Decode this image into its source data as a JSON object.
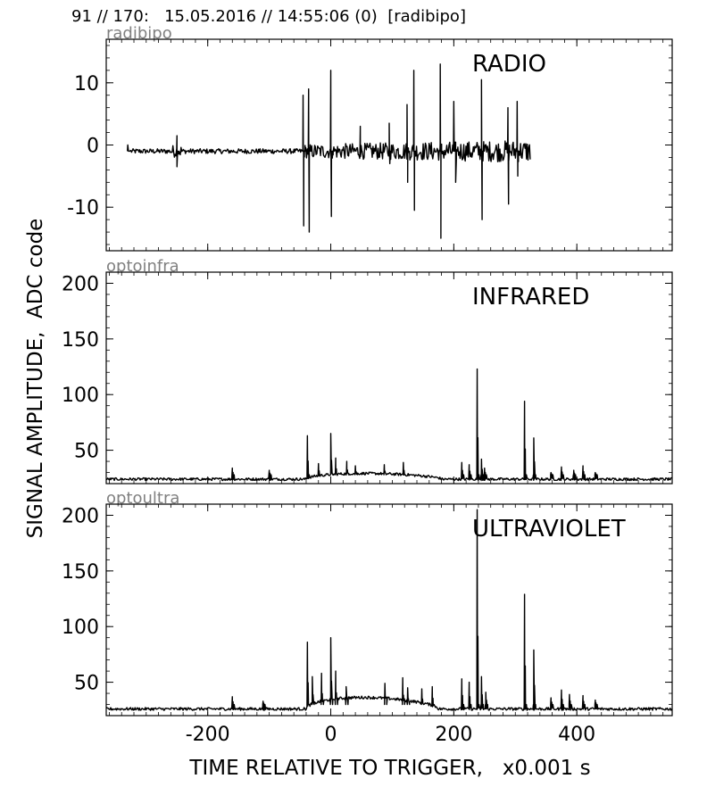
{
  "header": "91 // 170:   15.05.2016 // 14:55:06 (0)  [radibipo]",
  "y_axis_label": "SIGNAL AMPLITUDE,  ADC code",
  "x_axis_label": "TIME RELATIVE TO TRIGGER,   x0.001 s",
  "chart_data": [
    {
      "type": "line",
      "channel": "radibipo",
      "title": "RADIO",
      "xlim": [
        -365,
        555
      ],
      "ylim": [
        -17,
        17
      ],
      "yticks": [
        10,
        0,
        -10
      ],
      "ytick_labels": [
        "10",
        "0",
        "-10"
      ],
      "xticks": [
        -200,
        0,
        200,
        400
      ],
      "xtick_labels": [
        "-200",
        "0",
        "200",
        "400"
      ],
      "show_xtick_labels": false,
      "grid": false,
      "line_color": "#000000",
      "x_range": [
        -325,
        325
      ],
      "baseline": -1,
      "noise": 0.4,
      "spikes": [
        {
          "x": -330,
          "y": 0
        },
        {
          "x": -250,
          "y": 1.5
        },
        {
          "x": -250,
          "y": -3.5
        },
        {
          "x": -45,
          "y": 8
        },
        {
          "x": -44,
          "y": -13
        },
        {
          "x": -36,
          "y": 9
        },
        {
          "x": -35,
          "y": -14
        },
        {
          "x": 0,
          "y": 12
        },
        {
          "x": 1,
          "y": -11.5
        },
        {
          "x": 48,
          "y": 3
        },
        {
          "x": 95,
          "y": 3.5
        },
        {
          "x": 96,
          "y": -3
        },
        {
          "x": 124,
          "y": 6.5
        },
        {
          "x": 125,
          "y": -6
        },
        {
          "x": 135,
          "y": 12
        },
        {
          "x": 136,
          "y": -10.5
        },
        {
          "x": 178,
          "y": 13
        },
        {
          "x": 179,
          "y": -15
        },
        {
          "x": 200,
          "y": 7
        },
        {
          "x": 203,
          "y": -6
        },
        {
          "x": 245,
          "y": 10.5
        },
        {
          "x": 246,
          "y": -12
        },
        {
          "x": 288,
          "y": 6
        },
        {
          "x": 289,
          "y": -9.5
        },
        {
          "x": 303,
          "y": 7
        },
        {
          "x": 304,
          "y": -5
        }
      ]
    },
    {
      "type": "line",
      "channel": "optoinfra",
      "title": "INFRARED",
      "xlim": [
        -365,
        555
      ],
      "ylim": [
        20,
        210
      ],
      "yticks": [
        200,
        150,
        100,
        50
      ],
      "ytick_labels": [
        "200",
        "150",
        "100",
        "50"
      ],
      "xticks": [
        -200,
        0,
        200,
        400
      ],
      "xtick_labels": [
        "-200",
        "0",
        "200",
        "400"
      ],
      "show_xtick_labels": false,
      "grid": false,
      "line_color": "#000000",
      "x_range": [
        -365,
        555
      ],
      "baseline": 24,
      "noise": 1.2,
      "bump": {
        "start": -40,
        "end": 180,
        "level": 30
      },
      "spikes": [
        {
          "x": -160,
          "y": 34
        },
        {
          "x": -100,
          "y": 32
        },
        {
          "x": -38,
          "y": 63
        },
        {
          "x": -20,
          "y": 38
        },
        {
          "x": 0,
          "y": 65
        },
        {
          "x": 8,
          "y": 43
        },
        {
          "x": 26,
          "y": 40
        },
        {
          "x": 40,
          "y": 36
        },
        {
          "x": 87,
          "y": 37
        },
        {
          "x": 118,
          "y": 39
        },
        {
          "x": 213,
          "y": 39
        },
        {
          "x": 225,
          "y": 37
        },
        {
          "x": 238,
          "y": 123
        },
        {
          "x": 245,
          "y": 42
        },
        {
          "x": 250,
          "y": 34
        },
        {
          "x": 315,
          "y": 94
        },
        {
          "x": 330,
          "y": 61
        },
        {
          "x": 358,
          "y": 30
        },
        {
          "x": 375,
          "y": 35
        },
        {
          "x": 395,
          "y": 32
        },
        {
          "x": 410,
          "y": 36
        },
        {
          "x": 430,
          "y": 30
        }
      ]
    },
    {
      "type": "line",
      "channel": "optoultra",
      "title": "ULTRAVIOLET",
      "xlim": [
        -365,
        555
      ],
      "ylim": [
        20,
        210
      ],
      "yticks": [
        200,
        150,
        100,
        50
      ],
      "ytick_labels": [
        "200",
        "150",
        "100",
        "50"
      ],
      "xticks": [
        -200,
        0,
        200,
        400
      ],
      "xtick_labels": [
        "-200",
        "0",
        "200",
        "400"
      ],
      "show_xtick_labels": true,
      "grid": false,
      "line_color": "#000000",
      "x_range": [
        -365,
        555
      ],
      "baseline": 26,
      "noise": 1.3,
      "bump": {
        "start": -40,
        "end": 175,
        "level": 38
      },
      "spikes": [
        {
          "x": -160,
          "y": 37
        },
        {
          "x": -110,
          "y": 33
        },
        {
          "x": -38,
          "y": 86
        },
        {
          "x": -30,
          "y": 55
        },
        {
          "x": -15,
          "y": 58
        },
        {
          "x": 0,
          "y": 90
        },
        {
          "x": 8,
          "y": 60
        },
        {
          "x": 25,
          "y": 46
        },
        {
          "x": 88,
          "y": 49
        },
        {
          "x": 117,
          "y": 54
        },
        {
          "x": 125,
          "y": 45
        },
        {
          "x": 148,
          "y": 44
        },
        {
          "x": 165,
          "y": 46
        },
        {
          "x": 213,
          "y": 53
        },
        {
          "x": 225,
          "y": 50
        },
        {
          "x": 238,
          "y": 205
        },
        {
          "x": 245,
          "y": 55
        },
        {
          "x": 252,
          "y": 41
        },
        {
          "x": 315,
          "y": 129
        },
        {
          "x": 330,
          "y": 79
        },
        {
          "x": 358,
          "y": 36
        },
        {
          "x": 375,
          "y": 43
        },
        {
          "x": 388,
          "y": 39
        },
        {
          "x": 410,
          "y": 38
        },
        {
          "x": 430,
          "y": 34
        }
      ]
    }
  ]
}
